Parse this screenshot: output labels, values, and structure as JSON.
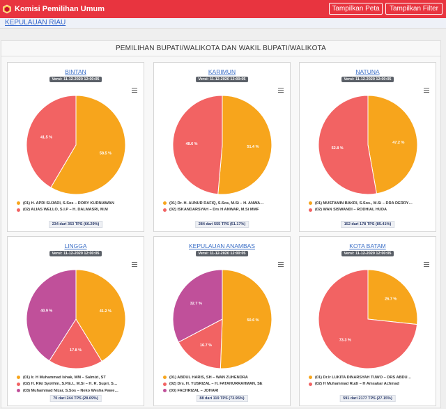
{
  "app": {
    "title": "Komisi Pemilihan Umum",
    "logo_icon": "kpu-logo-icon"
  },
  "nav": {
    "peta_label": "Tampilkan Peta",
    "filter_label": "Tampilkan Filter"
  },
  "breadcrumb": {
    "region": "KEPULAUAN RIAU"
  },
  "panel": {
    "title": "PEMILIHAN BUPATI/WALIKOTA DAN WAKIL BUPATI/WALIKOTA"
  },
  "colors": {
    "header": "#e8343f",
    "c1": "#f7a51c",
    "c2": "#f26363",
    "c3": "#c0509a"
  },
  "cards": [
    {
      "title": "BINTAN",
      "version": "Versi: 11-12-2020 12:00:05",
      "footer": "234 dari 353 TPS (66.29%)",
      "candidates": [
        {
          "label": "(01) H. APRI SUJADI, S.Sos – ROBY KURNIAWAN",
          "pct": 58.5,
          "pct_label": "58.5 %",
          "color": "#f7a51c"
        },
        {
          "label": "(02) ALIAS WELLO, S.I.P – H. DALMASRI, M.M",
          "pct": 41.5,
          "pct_label": "41.5 %",
          "color": "#f26363"
        }
      ]
    },
    {
      "title": "KARIMUN",
      "version": "Versi: 11-12-2020 12:00:05",
      "footer": "284 dari 555 TPS (51.17%)",
      "candidates": [
        {
          "label": "(01) Dr. H. AUNUR RAFIQ, S.Sos, M.Si – H. ANWA…",
          "pct": 51.4,
          "pct_label": "51.4 %",
          "color": "#f7a51c"
        },
        {
          "label": "(02) ISKANDARSYAH – Drs H ANWAR, M.Si MMF",
          "pct": 48.6,
          "pct_label": "48.6 %",
          "color": "#f26363"
        }
      ]
    },
    {
      "title": "NATUNA",
      "version": "Versi: 11-12-2020 12:00:05",
      "footer": "152 dari 178 TPS (85.41%)",
      "candidates": [
        {
          "label": "(01) MUSTAMIN BAKRI, S.Sos., M.Si – DRA DERRY…",
          "pct": 47.2,
          "pct_label": "47.2 %",
          "color": "#f7a51c"
        },
        {
          "label": "(02) WAN SISWANDI – RODHIAL HUDA",
          "pct": 52.8,
          "pct_label": "52.8 %",
          "color": "#f26363"
        }
      ]
    },
    {
      "title": "LINGGA",
      "version": "Versi: 11-12-2020 12:00:05",
      "footer": "70 dari 244 TPS (28.69%)",
      "candidates": [
        {
          "label": "(01) Ir. H Muhammad Ishak, MM – Salmizi, ST",
          "pct": 41.2,
          "pct_label": "41.2 %",
          "color": "#f7a51c"
        },
        {
          "label": "(02) H. Riki Syolihin, S.P.E.I., M.Si – H. R. Supri, S…",
          "pct": 17.8,
          "pct_label": "17.8 %",
          "color": "#f26363"
        },
        {
          "label": "(03) Muhammad Nizar, S.Sos – Neko Wesha Pawe…",
          "pct": 40.9,
          "pct_label": "40.9 %",
          "color": "#c0509a"
        }
      ]
    },
    {
      "title": "KEPULAUAN ANAMBAS",
      "version": "Versi: 11-12-2020 12:00:05",
      "footer": "88 dari 119 TPS (73.95%)",
      "candidates": [
        {
          "label": "(01) ABDUL HARIS, SH – WAN ZUHENDRA",
          "pct": 50.6,
          "pct_label": "50.6 %",
          "color": "#f7a51c"
        },
        {
          "label": "(02) Drs. H. YUSRIZAL – H. FATAHURRAHMAN, SE",
          "pct": 16.7,
          "pct_label": "16.7 %",
          "color": "#f26363"
        },
        {
          "label": "(03) FACHRIZAL – JOHARI",
          "pct": 32.7,
          "pct_label": "32.7 %",
          "color": "#c0509a"
        }
      ]
    },
    {
      "title": "KOTA BATAM",
      "version": "Versi: 11-12-2020 12:00:05",
      "footer": "591 dari 2177 TPS (27.15%)",
      "candidates": [
        {
          "label": "(01) Dr.Ir LUKITA DINARSYAH TUWO – DRS ABDU…",
          "pct": 26.7,
          "pct_label": "26.7 %",
          "color": "#f7a51c"
        },
        {
          "label": "(02) H Muhammad Rudi – H Amsakar Achmad",
          "pct": 73.3,
          "pct_label": "73.3 %",
          "color": "#f26363"
        }
      ]
    }
  ],
  "chart_data": [
    {
      "type": "pie",
      "title": "BINTAN",
      "categories": [
        "(01) H. APRI SUJADI, S.Sos – ROBY KURNIAWAN",
        "(02) ALIAS WELLO, S.I.P – H. DALMASRI, M.M"
      ],
      "values": [
        58.5,
        41.5
      ]
    },
    {
      "type": "pie",
      "title": "KARIMUN",
      "categories": [
        "(01) Dr. H. AUNUR RAFIQ, S.Sos, M.Si – H. ANWA…",
        "(02) ISKANDARSYAH – Drs H ANWAR, M.Si MMF"
      ],
      "values": [
        51.4,
        48.6
      ]
    },
    {
      "type": "pie",
      "title": "NATUNA",
      "categories": [
        "(01) MUSTAMIN BAKRI, S.Sos., M.Si – DRA DERRY…",
        "(02) WAN SISWANDI – RODHIAL HUDA"
      ],
      "values": [
        47.2,
        52.8
      ]
    },
    {
      "type": "pie",
      "title": "LINGGA",
      "categories": [
        "(01) Ir. H Muhammad Ishak, MM – Salmizi, ST",
        "(02) H. Riki Syolihin, S.P.E.I., M.Si – H. R. Supri, S…",
        "(03) Muhammad Nizar, S.Sos – Neko Wesha Pawe…"
      ],
      "values": [
        41.2,
        17.8,
        40.9
      ]
    },
    {
      "type": "pie",
      "title": "KEPULAUAN ANAMBAS",
      "categories": [
        "(01) ABDUL HARIS, SH – WAN ZUHENDRA",
        "(02) Drs. H. YUSRIZAL – H. FATAHURRAHMAN, SE",
        "(03) FACHRIZAL – JOHARI"
      ],
      "values": [
        50.6,
        16.7,
        32.7
      ]
    },
    {
      "type": "pie",
      "title": "KOTA BATAM",
      "categories": [
        "(01) Dr.Ir LUKITA DINARSYAH TUWO – DRS ABDU…",
        "(02) H Muhammad Rudi – H Amsakar Achmad"
      ],
      "values": [
        26.7,
        73.3
      ]
    }
  ]
}
